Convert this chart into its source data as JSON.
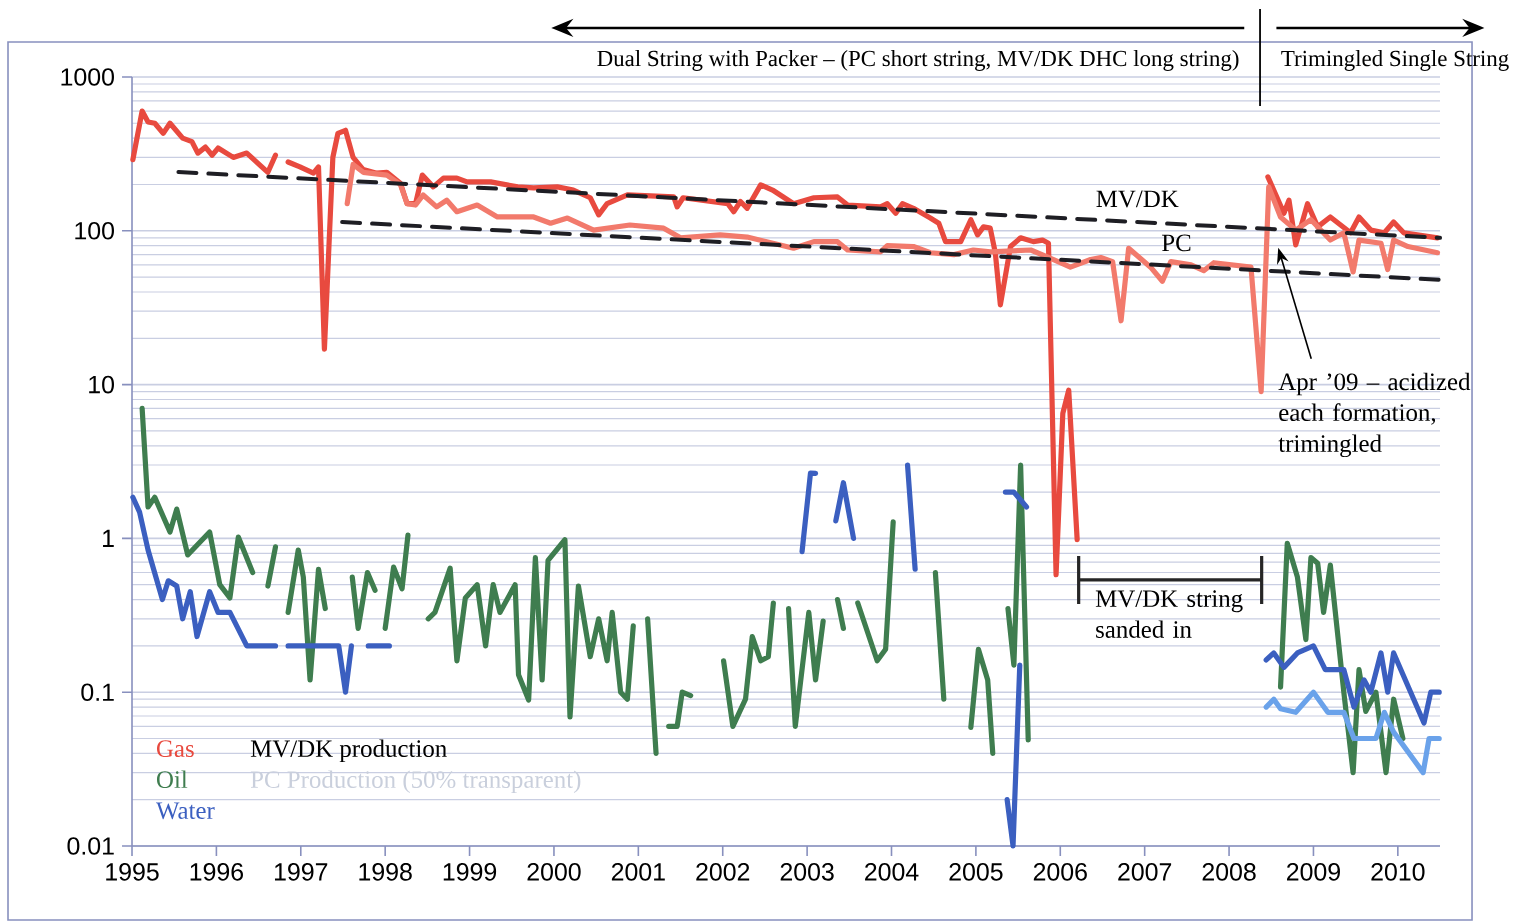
{
  "chart_data": {
    "type": "line",
    "log": "y",
    "grid": "y",
    "legend": "bottom left",
    "xlim": [
      1995,
      2010.5
    ],
    "ylim": [
      0.01,
      1000
    ],
    "xticks": [
      1995,
      1996,
      1997,
      1998,
      1999,
      2000,
      2001,
      2002,
      2003,
      2004,
      2005,
      2006,
      2007,
      2008,
      2009,
      2010
    ],
    "yticks": [
      0.01,
      0.1,
      1,
      10,
      100,
      1000
    ],
    "series": [
      {
        "name": "Gas",
        "color": "#e84a3f",
        "x": [
          1995.01,
          1995.12,
          1995.19,
          1995.27,
          1995.37,
          1995.45,
          1995.6,
          1995.71,
          1995.78,
          1995.87,
          1995.95,
          1996.02,
          1996.2,
          1996.36,
          1996.61,
          1996.7,
          1996.77,
          1996.85,
          1996.99,
          1997.15,
          1997.21,
          1997.28,
          1997.38,
          1997.44,
          1997.53,
          1997.62,
          1997.74,
          1997.9,
          1998.02,
          1998.18,
          1998.26,
          1998.36,
          1998.44,
          1998.57,
          1998.69,
          1998.85,
          1998.97,
          1999.25,
          1999.57,
          1999.76,
          2000.04,
          2000.23,
          2000.43,
          2000.53,
          2000.63,
          2000.87,
          2001.42,
          2001.46,
          2001.53,
          2002.06,
          2002.13,
          2002.21,
          2002.29,
          2002.45,
          2002.59,
          2002.84,
          2003.08,
          2003.36,
          2003.48,
          2003.87,
          2003.95,
          2004.05,
          2004.13,
          2004.26,
          2004.46,
          2004.56,
          2004.64,
          2004.82,
          2004.94,
          2005.02,
          2005.09,
          2005.17,
          2005.23,
          2005.29,
          2005.41,
          2005.53,
          2005.68,
          2005.79,
          2005.86,
          2005.95,
          2006.03,
          2006.1,
          2006.2,
          2007.3,
          2008.46,
          2008.65,
          2008.71,
          2008.79,
          2008.93,
          2009.05,
          2009.2,
          2009.44,
          2009.54,
          2009.68,
          2009.84,
          2009.95,
          2010.07,
          2010.47
        ],
        "values": [
          290,
          600,
          510,
          500,
          430,
          500,
          400,
          380,
          320,
          350,
          310,
          345,
          300,
          320,
          240,
          310,
          null,
          280,
          260,
          237,
          260,
          17,
          300,
          430,
          450,
          300,
          250,
          237,
          240,
          204,
          150,
          150,
          230,
          193,
          220,
          220,
          208,
          208,
          193,
          190,
          193,
          184,
          164,
          127,
          150,
          171,
          166,
          143,
          164,
          150,
          133,
          155,
          140,
          199,
          184,
          150,
          164,
          166,
          147,
          143,
          150,
          130,
          150,
          140,
          121,
          112,
          85,
          85,
          118,
          94,
          106,
          104,
          72,
          33,
          79,
          90,
          85,
          87,
          83,
          0.58,
          6.5,
          9.2,
          0.98,
          null,
          224,
          130,
          158,
          81,
          150,
          106,
          123,
          97,
          123,
          101,
          97,
          114,
          97,
          90
        ]
      },
      {
        "color": "#f27a6c",
        "x": [
          1997.55,
          1997.62,
          1997.74,
          1998.02,
          1998.18,
          1998.26,
          1998.36,
          1998.45,
          1998.61,
          1998.73,
          1998.85,
          1999.09,
          1999.33,
          1999.76,
          1999.96,
          2000.16,
          2000.47,
          2000.9,
          2001.3,
          2001.5,
          2001.97,
          2002.29,
          2002.84,
          2003.08,
          2003.36,
          2003.48,
          2003.87,
          2003.95,
          2004.26,
          2004.46,
          2004.74,
          2004.97,
          2005.17,
          2005.65,
          2005.92,
          2006.12,
          2006.36,
          2006.48,
          2006.62,
          2006.72,
          2006.81,
          2007.07,
          2007.21,
          2007.31,
          2007.55,
          2007.7,
          2007.82,
          2008.26,
          2008.38,
          2008.47,
          2008.61,
          2008.79,
          2008.97,
          2009.2,
          2009.36,
          2009.47,
          2009.54,
          2009.8,
          2009.88,
          2009.95,
          2010.12,
          2010.47
        ],
        "values": [
          150,
          270,
          240,
          230,
          200,
          150,
          147,
          171,
          143,
          158,
          133,
          147,
          123,
          123,
          112,
          121,
          101,
          109,
          104,
          90,
          94,
          91,
          77,
          85,
          85,
          75,
          73,
          80,
          79,
          72,
          70,
          75,
          73,
          75,
          65,
          58,
          65,
          67,
          63,
          26,
          77,
          58,
          47,
          63,
          60,
          55,
          62,
          58,
          9,
          193,
          123,
          101,
          118,
          87,
          97,
          54,
          87,
          83,
          56,
          87,
          79,
          72
        ]
      },
      {
        "name": "Oil",
        "color": "#3f7d4f",
        "x": [
          1995.12,
          1995.19,
          1995.27,
          1995.45,
          1995.53,
          1995.66,
          1995.92,
          1996.04,
          1996.16,
          1996.26,
          1996.43,
          1996.52,
          1996.61,
          1996.7,
          1996.77,
          1996.85,
          1996.97,
          1997.03,
          1997.11,
          1997.21,
          1997.29,
          1997.45,
          1997.61,
          1997.68,
          1997.79,
          1997.88,
          1997.94,
          1998.0,
          1998.1,
          1998.2,
          1998.27,
          1998.4,
          1998.51,
          1998.59,
          1998.77,
          1998.85,
          1998.95,
          1999.09,
          1999.19,
          1999.28,
          1999.36,
          1999.54,
          1999.58,
          1999.7,
          1999.78,
          1999.86,
          1999.93,
          2000.13,
          2000.19,
          2000.29,
          2000.43,
          2000.53,
          2000.63,
          2000.69,
          2000.79,
          2000.87,
          2000.94,
          2001.0,
          2001.11,
          2001.21,
          2001.3,
          2001.36,
          2001.46,
          2001.52,
          2001.62,
          2001.8,
          2002.01,
          2002.12,
          2002.27,
          2002.35,
          2002.45,
          2002.54,
          2002.6,
          2002.68,
          2002.78,
          2002.86,
          2003.02,
          2003.1,
          2003.19,
          2003.27,
          2003.36,
          2003.43,
          2003.5,
          2003.6,
          2003.83,
          2003.93,
          2004.02,
          2004.3,
          2004.52,
          2004.62,
          2004.8,
          2004.94,
          2005.03,
          2005.14,
          2005.2,
          2005.3,
          2005.38,
          2005.45,
          2005.53,
          2005.62,
          2007.0,
          2008.61,
          2008.69,
          2008.81,
          2008.91,
          2008.97,
          2009.05,
          2009.12,
          2009.2,
          2009.36,
          2009.47,
          2009.54,
          2009.62,
          2009.74,
          2009.86,
          2009.95,
          2010.06
        ],
        "values": [
          7,
          1.6,
          1.85,
          1.1,
          1.55,
          0.78,
          1.1,
          0.5,
          0.41,
          1.02,
          0.6,
          null,
          0.49,
          0.88,
          null,
          0.33,
          0.84,
          0.56,
          0.12,
          0.63,
          0.35,
          null,
          0.56,
          0.26,
          0.6,
          0.46,
          null,
          0.26,
          0.65,
          0.47,
          1.05,
          null,
          0.3,
          0.33,
          0.64,
          0.16,
          0.41,
          0.5,
          0.2,
          0.5,
          0.33,
          0.5,
          0.13,
          0.089,
          0.75,
          0.12,
          0.72,
          0.98,
          0.069,
          0.49,
          0.17,
          0.3,
          0.16,
          0.33,
          0.1,
          0.09,
          0.27,
          null,
          0.3,
          0.04,
          null,
          0.06,
          0.06,
          0.1,
          0.095,
          null,
          0.16,
          0.06,
          0.09,
          0.23,
          0.16,
          0.17,
          0.38,
          null,
          0.35,
          0.06,
          0.33,
          0.12,
          0.29,
          null,
          0.4,
          0.26,
          null,
          0.38,
          0.16,
          0.19,
          1.28,
          null,
          0.6,
          0.09,
          null,
          0.059,
          0.19,
          0.12,
          0.04,
          null,
          0.35,
          0.15,
          3.0,
          0.049,
          null,
          0.108,
          0.93,
          0.56,
          0.22,
          0.75,
          0.69,
          0.33,
          0.67,
          0.1,
          0.03,
          0.14,
          0.075,
          0.1,
          0.03,
          0.09,
          0.05
        ]
      },
      {
        "name": "Water",
        "color": "#3b5fc0",
        "x": [
          1995.01,
          1995.09,
          1995.19,
          1995.36,
          1995.43,
          1995.53,
          1995.6,
          1995.69,
          1995.77,
          1995.92,
          1996.02,
          1996.16,
          1996.36,
          1996.7,
          1996.77,
          1996.85,
          1997.3,
          1997.45,
          1997.53,
          1997.6,
          1997.7,
          1997.8,
          1998.05,
          2000.5,
          2002.94,
          2003.04,
          2003.1,
          2003.2,
          2003.34,
          2003.43,
          2003.55,
          2003.8,
          2004.19,
          2004.28,
          2004.8,
          2005.35,
          2005.45,
          2005.6,
          2005.5,
          2005.37,
          2005.44,
          2005.52,
          2007.0,
          2008.44,
          2008.53,
          2008.65,
          2008.81,
          2009.0,
          2009.14,
          2009.36,
          2009.48,
          2009.6,
          2009.68,
          2009.8,
          2009.88,
          2009.95,
          2010.31,
          2010.39,
          2010.49
        ],
        "values": [
          1.85,
          1.48,
          0.84,
          0.4,
          0.53,
          0.49,
          0.3,
          0.45,
          0.23,
          0.45,
          0.33,
          0.33,
          0.2,
          0.2,
          null,
          0.2,
          0.2,
          0.2,
          0.1,
          0.2,
          null,
          0.2,
          0.2,
          null,
          0.82,
          2.66,
          2.65,
          null,
          1.3,
          2.3,
          1.0,
          null,
          3.0,
          0.63,
          null,
          2.0,
          2.0,
          1.6,
          null,
          0.02,
          0.01,
          0.15,
          null,
          0.162,
          0.18,
          0.145,
          0.18,
          0.2,
          0.14,
          0.14,
          0.08,
          0.12,
          0.1,
          0.18,
          0.1,
          0.18,
          0.063,
          0.1,
          0.1
        ]
      },
      {
        "color": "#6aa2ea",
        "x": [
          2008.44,
          2008.53,
          2008.61,
          2008.79,
          2009.0,
          2009.17,
          2009.36,
          2009.48,
          2009.74,
          2009.84,
          2009.95,
          2010.3,
          2010.37,
          2010.49
        ],
        "values": [
          0.08,
          0.09,
          0.078,
          0.074,
          0.1,
          0.074,
          0.074,
          0.05,
          0.05,
          0.074,
          0.055,
          0.03,
          0.05,
          0.05
        ]
      },
      {
        "name": "MV/DK",
        "color": "#1e1e24",
        "line_style": "dashed",
        "x": [
          1995.55,
          2010.5
        ],
        "values": [
          241,
          90
        ]
      },
      {
        "name": "PC",
        "color": "#1e1e24",
        "line_style": "dashed",
        "x": [
          1997.49,
          2010.5
        ],
        "values": [
          114,
          48
        ]
      }
    ],
    "annotations": [
      "Dual String with Packer – (PC short string, MV/DK DHC long string)",
      "Trimingled Single String",
      "MV/DK string sanded in",
      "MV/DK production",
      "PC Production (50% transparent)",
      "Apr ’09 – acidized each formation, trimingled"
    ]
  }
}
